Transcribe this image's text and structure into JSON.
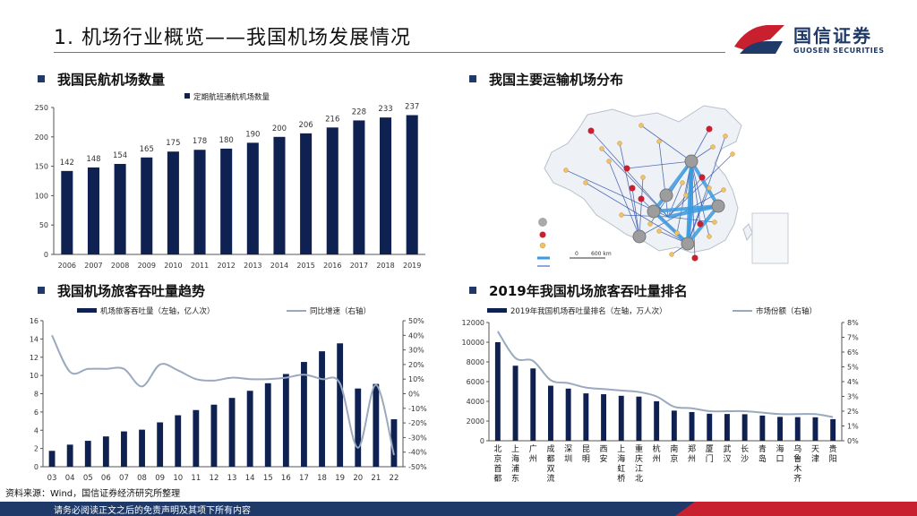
{
  "header": {
    "title": "1. 机场行业概览——我国机场发展情况",
    "logo_cn": "国信证券",
    "logo_en": "GUOSEN SECURITIES"
  },
  "sections": {
    "s1": "我国民航机场数量",
    "s2": "我国主要运输机场分布",
    "s3": "我国机场旅客吞吐量趋势",
    "s4": "2019年我国机场旅客吞吐量排名"
  },
  "map_legend": {
    "row1": "",
    "row2": "",
    "row3": "",
    "scale_start": "0",
    "scale_end": "600 km"
  },
  "source": "资料来源：Wind，国信证券经济研究所整理",
  "footer": "请务必阅读正文之后的免责声明及其项下所有内容",
  "colors": {
    "navy": "#0f2150",
    "line": "#9aa9bd",
    "accent_red": "#c8202f",
    "map_line": "#2a4fa8",
    "map_hub": "#3a9be0"
  },
  "chart_data": [
    {
      "type": "bar",
      "legend": "定期航班通航机场数量",
      "categories": [
        "2006",
        "2007",
        "2008",
        "2009",
        "2010",
        "2011",
        "2012",
        "2013",
        "2014",
        "2015",
        "2016",
        "2017",
        "2018",
        "2019"
      ],
      "values": [
        142,
        148,
        154,
        165,
        175,
        178,
        180,
        190,
        200,
        206,
        216,
        228,
        233,
        237
      ],
      "ylim": [
        0,
        250
      ],
      "yticks": [
        0,
        50,
        100,
        150,
        200,
        250
      ]
    },
    {
      "type": "bar+line",
      "categories": [
        "03",
        "04",
        "05",
        "06",
        "07",
        "08",
        "09",
        "10",
        "11",
        "12",
        "13",
        "14",
        "15",
        "16",
        "17",
        "18",
        "19",
        "20",
        "21",
        "22"
      ],
      "series": [
        {
          "name": "机场旅客吞吐量（左轴，亿人次）",
          "type": "bar",
          "values": [
            1.74,
            2.42,
            2.84,
            3.32,
            3.87,
            4.06,
            4.86,
            5.64,
            6.21,
            6.8,
            7.54,
            8.32,
            9.15,
            10.16,
            11.48,
            12.65,
            13.52,
            8.57,
            9.07,
            5.2
          ]
        },
        {
          "name": "同比增速（右轴）",
          "type": "line",
          "values": [
            40,
            15,
            17,
            17,
            17,
            5,
            20,
            16,
            10,
            9,
            11,
            10,
            10,
            11,
            13,
            10,
            7,
            -37,
            6,
            -42
          ]
        }
      ],
      "ylim_left": [
        0,
        16
      ],
      "yticks_left": [
        0,
        2,
        4,
        6,
        8,
        10,
        12,
        14,
        16
      ],
      "ylim_right": [
        -50,
        50
      ],
      "yticks_right": [
        "-50%",
        "-40%",
        "-30%",
        "-20%",
        "-10%",
        "0%",
        "10%",
        "20%",
        "30%",
        "40%",
        "50%"
      ]
    },
    {
      "type": "bar+line",
      "categories": [
        "北京首都",
        "上海浦东",
        "广州",
        "成都双流",
        "深圳",
        "昆明",
        "西安",
        "上海虹桥",
        "重庆江北",
        "杭州",
        "南京",
        "郑州",
        "厦门",
        "武汉",
        "长沙",
        "青岛",
        "海口",
        "乌鲁木齐",
        "天津",
        "贵阳"
      ],
      "series": [
        {
          "name": "2019年我国机场吞吐量排名（左轴，万人次）",
          "type": "bar",
          "values": [
            10001,
            7615,
            7339,
            5586,
            5293,
            4808,
            4722,
            4564,
            4479,
            4010,
            3058,
            2912,
            2742,
            2715,
            2691,
            2556,
            2422,
            2396,
            2381,
            2191
          ]
        },
        {
          "name": "市场份额（右轴）",
          "type": "line",
          "values": [
            7.4,
            5.6,
            5.4,
            4.1,
            3.9,
            3.6,
            3.5,
            3.4,
            3.3,
            3.0,
            2.3,
            2.2,
            2.0,
            2.0,
            2.0,
            1.9,
            1.8,
            1.8,
            1.8,
            1.6
          ]
        }
      ],
      "ylim_left": [
        0,
        12000
      ],
      "yticks_left": [
        0,
        2000,
        4000,
        6000,
        8000,
        10000,
        12000
      ],
      "ylim_right": [
        0,
        8
      ],
      "yticks_right": [
        "0%",
        "1%",
        "2%",
        "3%",
        "4%",
        "5%",
        "6%",
        "7%",
        "8%"
      ]
    }
  ]
}
